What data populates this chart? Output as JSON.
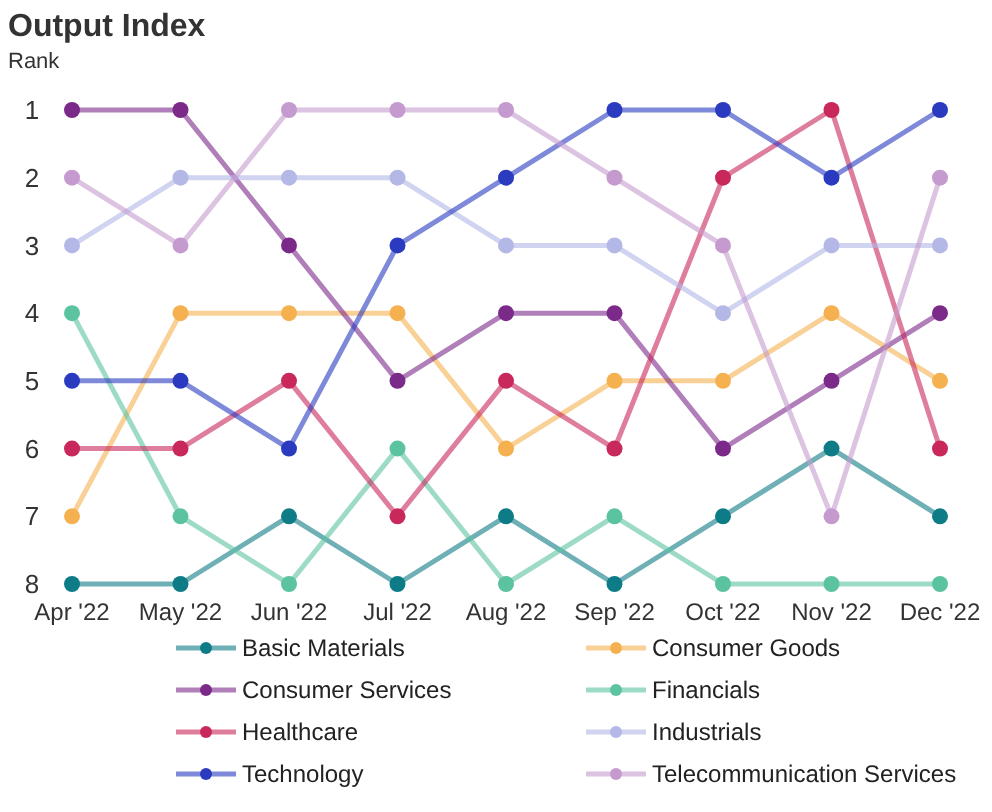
{
  "chart_data": {
    "type": "line",
    "title": "Output Index",
    "ylabel": "Rank",
    "categories": [
      "Apr '22",
      "May '22",
      "Jun '22",
      "Jul '22",
      "Aug '22",
      "Sep '22",
      "Oct '22",
      "Nov '22",
      "Dec '22"
    ],
    "ylim": [
      8,
      1
    ],
    "yticks": [
      1,
      2,
      3,
      4,
      5,
      6,
      7,
      8
    ],
    "grid": false,
    "legend": "bottom",
    "marker": "circle",
    "line_style": "solid",
    "series": [
      {
        "name": "Basic Materials",
        "color": "#0e7c86",
        "values": [
          8,
          8,
          7,
          8,
          7,
          8,
          7,
          6,
          7
        ]
      },
      {
        "name": "Consumer Goods",
        "color": "#f5b04f",
        "values": [
          7,
          4,
          4,
          4,
          6,
          5,
          5,
          4,
          5
        ]
      },
      {
        "name": "Consumer Services",
        "color": "#7b2a8a",
        "values": [
          1,
          1,
          3,
          5,
          4,
          4,
          6,
          5,
          4
        ]
      },
      {
        "name": "Financials",
        "color": "#5cc3a0",
        "values": [
          4,
          7,
          8,
          6,
          8,
          7,
          8,
          8,
          8
        ]
      },
      {
        "name": "Healthcare",
        "color": "#c8285a",
        "values": [
          6,
          6,
          5,
          7,
          5,
          6,
          2,
          1,
          6
        ]
      },
      {
        "name": "Industrials",
        "color": "#b3b8e6",
        "values": [
          3,
          2,
          2,
          2,
          3,
          3,
          4,
          3,
          3
        ]
      },
      {
        "name": "Technology",
        "color": "#2a3bbf",
        "values": [
          5,
          5,
          6,
          3,
          2,
          1,
          1,
          2,
          1
        ]
      },
      {
        "name": "Telecommunication Services",
        "color": "#c59bcf",
        "values": [
          2,
          3,
          1,
          1,
          1,
          2,
          3,
          7,
          2
        ]
      }
    ]
  }
}
